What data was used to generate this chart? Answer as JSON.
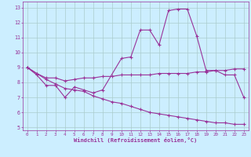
{
  "xlabel": "Windchill (Refroidissement éolien,°C)",
  "bg_color": "#cceeff",
  "grid_color": "#aacccc",
  "line_color": "#993399",
  "spine_color": "#993399",
  "ylim": [
    4.8,
    13.4
  ],
  "xlim": [
    -0.5,
    23.5
  ],
  "yticks": [
    5,
    6,
    7,
    8,
    9,
    10,
    11,
    12,
    13
  ],
  "xticks": [
    0,
    1,
    2,
    3,
    4,
    5,
    6,
    7,
    8,
    9,
    10,
    11,
    12,
    13,
    14,
    15,
    16,
    17,
    18,
    19,
    20,
    21,
    22,
    23
  ],
  "series1_x": [
    0,
    1,
    2,
    3,
    4,
    5,
    6,
    7,
    8,
    10,
    11,
    12,
    13,
    14,
    15,
    16,
    17,
    18,
    19,
    20,
    21,
    22,
    23
  ],
  "series1_y": [
    9.0,
    8.5,
    7.8,
    7.8,
    7.0,
    7.7,
    7.5,
    7.3,
    7.5,
    9.6,
    9.7,
    11.5,
    11.5,
    10.5,
    12.8,
    12.9,
    12.9,
    11.1,
    8.8,
    8.8,
    8.5,
    8.5,
    7.0
  ],
  "series2_x": [
    0,
    1,
    2,
    3,
    4,
    5,
    6,
    7,
    8,
    9,
    10,
    11,
    12,
    13,
    14,
    15,
    16,
    17,
    18,
    19,
    20,
    21,
    22,
    23
  ],
  "series2_y": [
    9.0,
    8.6,
    8.3,
    8.3,
    8.1,
    8.2,
    8.3,
    8.3,
    8.4,
    8.4,
    8.5,
    8.5,
    8.5,
    8.5,
    8.6,
    8.6,
    8.6,
    8.6,
    8.7,
    8.7,
    8.8,
    8.8,
    8.9,
    8.9
  ],
  "series3_x": [
    0,
    1,
    2,
    3,
    4,
    5,
    6,
    7,
    8,
    9,
    10,
    11,
    12,
    13,
    14,
    15,
    16,
    17,
    18,
    19,
    20,
    21,
    22,
    23
  ],
  "series3_y": [
    9.0,
    8.6,
    8.2,
    7.9,
    7.6,
    7.5,
    7.4,
    7.1,
    6.9,
    6.7,
    6.6,
    6.4,
    6.2,
    6.0,
    5.9,
    5.8,
    5.7,
    5.6,
    5.5,
    5.4,
    5.3,
    5.3,
    5.2,
    5.2
  ]
}
